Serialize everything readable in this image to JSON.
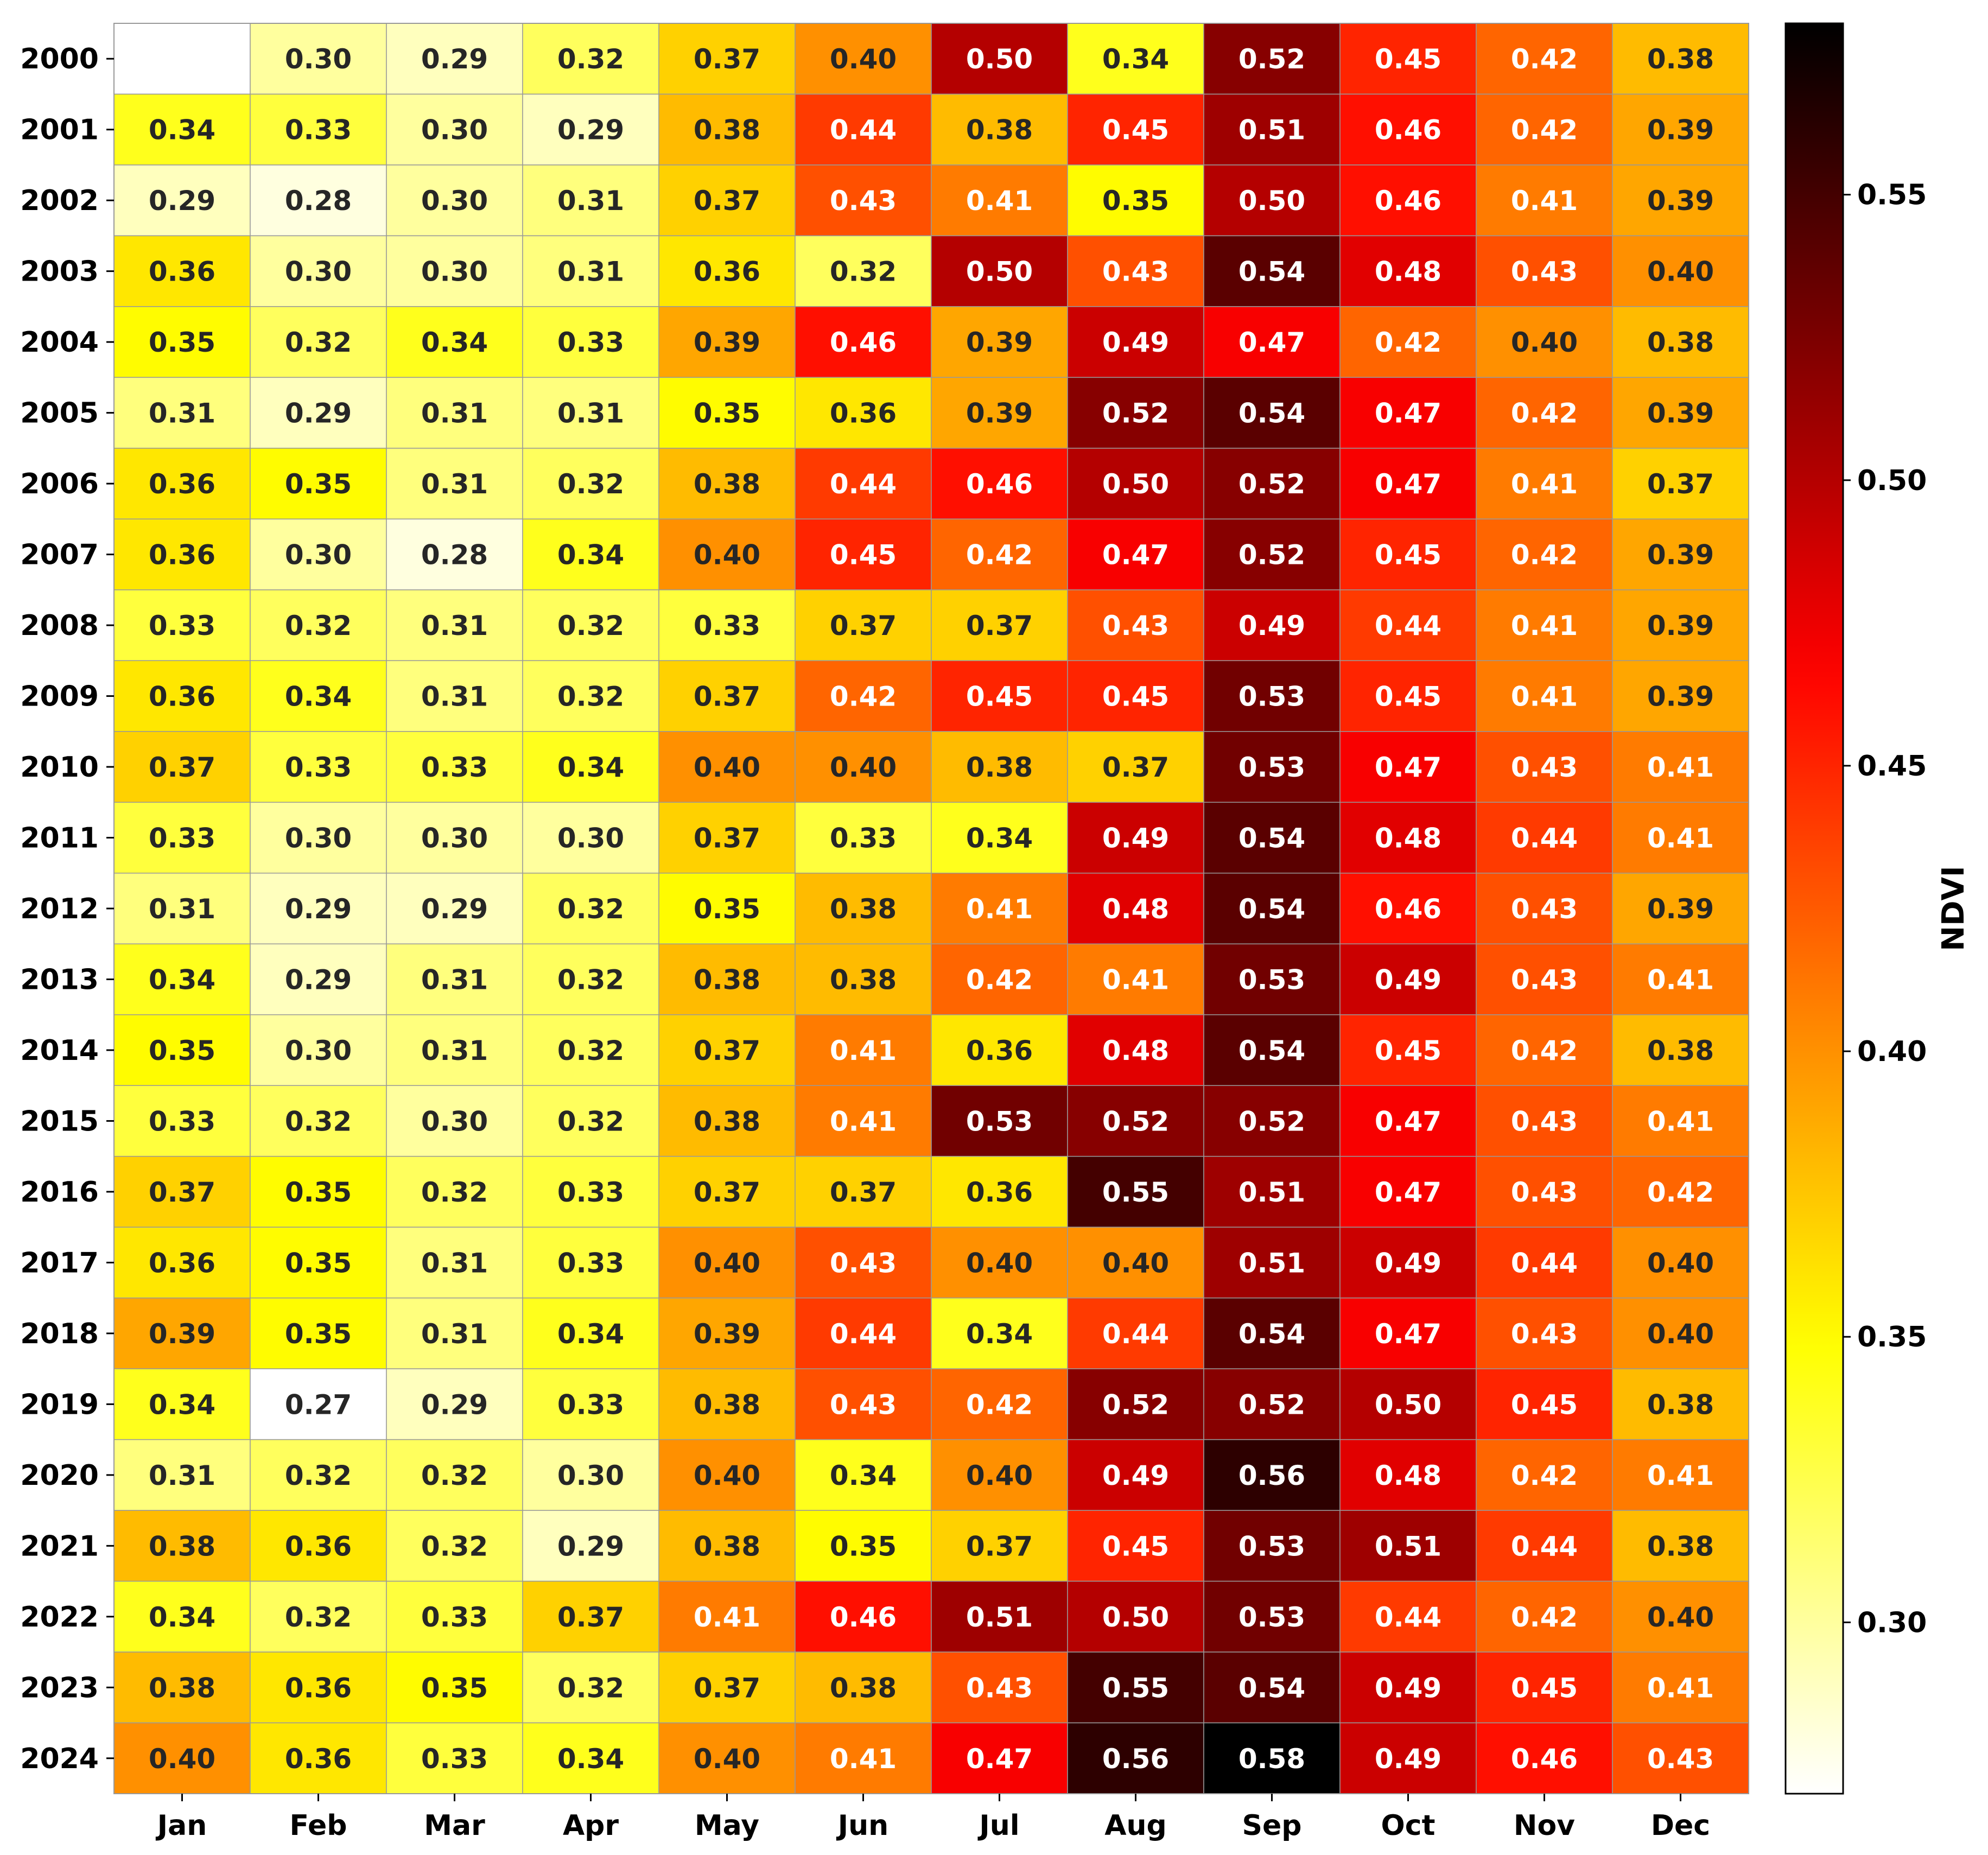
{
  "chart_data": {
    "type": "heatmap",
    "title": "",
    "xlabel": "",
    "ylabel": "",
    "colorbar_label": "NDVI",
    "colormap": "hot_r",
    "vmin": 0.27,
    "vmax": 0.58,
    "colorbar_ticks": [
      "0.30",
      "0.35",
      "0.40",
      "0.45",
      "0.50",
      "0.55"
    ],
    "columns": [
      "Jan",
      "Feb",
      "Mar",
      "Apr",
      "May",
      "Jun",
      "Jul",
      "Aug",
      "Sep",
      "Oct",
      "Nov",
      "Dec"
    ],
    "rows": [
      "2000",
      "2001",
      "2002",
      "2003",
      "2004",
      "2005",
      "2006",
      "2007",
      "2008",
      "2009",
      "2010",
      "2011",
      "2012",
      "2013",
      "2014",
      "2015",
      "2016",
      "2017",
      "2018",
      "2019",
      "2020",
      "2021",
      "2022",
      "2023",
      "2024"
    ],
    "values": [
      [
        null,
        0.3,
        0.29,
        0.32,
        0.37,
        0.4,
        0.5,
        0.34,
        0.52,
        0.45,
        0.42,
        0.38
      ],
      [
        0.34,
        0.33,
        0.3,
        0.29,
        0.38,
        0.44,
        0.38,
        0.45,
        0.51,
        0.46,
        0.42,
        0.39
      ],
      [
        0.29,
        0.28,
        0.3,
        0.31,
        0.37,
        0.43,
        0.41,
        0.35,
        0.5,
        0.46,
        0.41,
        0.39
      ],
      [
        0.36,
        0.3,
        0.3,
        0.31,
        0.36,
        0.32,
        0.5,
        0.43,
        0.54,
        0.48,
        0.43,
        0.4
      ],
      [
        0.35,
        0.32,
        0.34,
        0.33,
        0.39,
        0.46,
        0.39,
        0.49,
        0.47,
        0.42,
        0.4,
        0.38
      ],
      [
        0.31,
        0.29,
        0.31,
        0.31,
        0.35,
        0.36,
        0.39,
        0.52,
        0.54,
        0.47,
        0.42,
        0.39
      ],
      [
        0.36,
        0.35,
        0.31,
        0.32,
        0.38,
        0.44,
        0.46,
        0.5,
        0.52,
        0.47,
        0.41,
        0.37
      ],
      [
        0.36,
        0.3,
        0.28,
        0.34,
        0.4,
        0.45,
        0.42,
        0.47,
        0.52,
        0.45,
        0.42,
        0.39
      ],
      [
        0.33,
        0.32,
        0.31,
        0.32,
        0.33,
        0.37,
        0.37,
        0.43,
        0.49,
        0.44,
        0.41,
        0.39
      ],
      [
        0.36,
        0.34,
        0.31,
        0.32,
        0.37,
        0.42,
        0.45,
        0.45,
        0.53,
        0.45,
        0.41,
        0.39
      ],
      [
        0.37,
        0.33,
        0.33,
        0.34,
        0.4,
        0.4,
        0.38,
        0.37,
        0.53,
        0.47,
        0.43,
        0.41
      ],
      [
        0.33,
        0.3,
        0.3,
        0.3,
        0.37,
        0.33,
        0.34,
        0.49,
        0.54,
        0.48,
        0.44,
        0.41
      ],
      [
        0.31,
        0.29,
        0.29,
        0.32,
        0.35,
        0.38,
        0.41,
        0.48,
        0.54,
        0.46,
        0.43,
        0.39
      ],
      [
        0.34,
        0.29,
        0.31,
        0.32,
        0.38,
        0.38,
        0.42,
        0.41,
        0.53,
        0.49,
        0.43,
        0.41
      ],
      [
        0.35,
        0.3,
        0.31,
        0.32,
        0.37,
        0.41,
        0.36,
        0.48,
        0.54,
        0.45,
        0.42,
        0.38
      ],
      [
        0.33,
        0.32,
        0.3,
        0.32,
        0.38,
        0.41,
        0.53,
        0.52,
        0.52,
        0.47,
        0.43,
        0.41
      ],
      [
        0.37,
        0.35,
        0.32,
        0.33,
        0.37,
        0.37,
        0.36,
        0.55,
        0.51,
        0.47,
        0.43,
        0.42
      ],
      [
        0.36,
        0.35,
        0.31,
        0.33,
        0.4,
        0.43,
        0.4,
        0.4,
        0.51,
        0.49,
        0.44,
        0.4
      ],
      [
        0.39,
        0.35,
        0.31,
        0.34,
        0.39,
        0.44,
        0.34,
        0.44,
        0.54,
        0.47,
        0.43,
        0.4
      ],
      [
        0.34,
        0.27,
        0.29,
        0.33,
        0.38,
        0.43,
        0.42,
        0.52,
        0.52,
        0.5,
        0.45,
        0.38
      ],
      [
        0.31,
        0.32,
        0.32,
        0.3,
        0.4,
        0.34,
        0.4,
        0.49,
        0.56,
        0.48,
        0.42,
        0.41
      ],
      [
        0.38,
        0.36,
        0.32,
        0.29,
        0.38,
        0.35,
        0.37,
        0.45,
        0.53,
        0.51,
        0.44,
        0.38
      ],
      [
        0.34,
        0.32,
        0.33,
        0.37,
        0.41,
        0.46,
        0.51,
        0.5,
        0.53,
        0.44,
        0.42,
        0.4
      ],
      [
        0.38,
        0.36,
        0.35,
        0.32,
        0.37,
        0.38,
        0.43,
        0.55,
        0.54,
        0.49,
        0.45,
        0.41
      ],
      [
        0.4,
        0.36,
        0.33,
        0.34,
        0.4,
        0.41,
        0.47,
        0.56,
        0.58,
        0.49,
        0.46,
        0.43
      ]
    ],
    "grid": true,
    "legend": "colorbar-right"
  }
}
